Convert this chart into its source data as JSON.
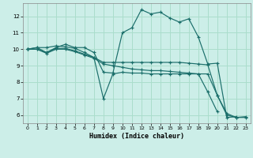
{
  "xlabel": "Humidex (Indice chaleur)",
  "xlim": [
    -0.5,
    23.5
  ],
  "ylim": [
    5.5,
    12.8
  ],
  "background_color": "#cceee8",
  "grid_color": "#aaddcc",
  "line_color": "#1a6e6a",
  "xticks": [
    0,
    1,
    2,
    3,
    4,
    5,
    6,
    7,
    8,
    9,
    10,
    11,
    12,
    13,
    14,
    15,
    16,
    17,
    18,
    19,
    20,
    21,
    22,
    23
  ],
  "yticks": [
    6,
    7,
    8,
    9,
    10,
    11,
    12
  ],
  "lines": [
    {
      "x": [
        0,
        1,
        2,
        3,
        4,
        5,
        6,
        7,
        8,
        9,
        10,
        11,
        12,
        13,
        14,
        15,
        16,
        17,
        18,
        19,
        20,
        21,
        22
      ],
      "y": [
        10.0,
        10.1,
        9.8,
        10.1,
        10.3,
        10.1,
        10.1,
        9.8,
        8.6,
        8.55,
        11.0,
        11.3,
        12.4,
        12.15,
        12.25,
        11.9,
        11.65,
        11.85,
        10.75,
        9.1,
        9.15,
        5.85,
        5.9
      ]
    },
    {
      "x": [
        0,
        1,
        2,
        3,
        4,
        5,
        6,
        7,
        8,
        9,
        10,
        11,
        12,
        13,
        14,
        15,
        16,
        17,
        18,
        19,
        20
      ],
      "y": [
        10.0,
        10.1,
        10.1,
        10.2,
        10.15,
        10.05,
        9.8,
        9.5,
        7.0,
        8.5,
        8.6,
        8.55,
        8.55,
        8.5,
        8.5,
        8.5,
        8.5,
        8.5,
        8.5,
        7.4,
        6.2
      ]
    },
    {
      "x": [
        0,
        1,
        2,
        3,
        4,
        5,
        6,
        7,
        8,
        9,
        10,
        11,
        12,
        13,
        14,
        15,
        16,
        17,
        18,
        19,
        20,
        21,
        22,
        23
      ],
      "y": [
        10.0,
        10.0,
        9.8,
        10.05,
        10.05,
        9.9,
        9.7,
        9.5,
        9.2,
        9.2,
        9.2,
        9.2,
        9.2,
        9.2,
        9.2,
        9.2,
        9.2,
        9.15,
        9.1,
        9.05,
        7.2,
        6.0,
        5.85,
        5.9
      ]
    },
    {
      "x": [
        0,
        1,
        2,
        3,
        4,
        5,
        6,
        7,
        8,
        9,
        10,
        11,
        12,
        13,
        14,
        15,
        16,
        17,
        18,
        19,
        20,
        21,
        22,
        23
      ],
      "y": [
        10.0,
        10.0,
        9.75,
        10.0,
        10.0,
        9.85,
        9.65,
        9.45,
        9.1,
        9.0,
        8.9,
        8.8,
        8.75,
        8.7,
        8.7,
        8.65,
        8.6,
        8.55,
        8.5,
        8.5,
        7.2,
        6.1,
        5.85,
        5.85
      ]
    }
  ]
}
